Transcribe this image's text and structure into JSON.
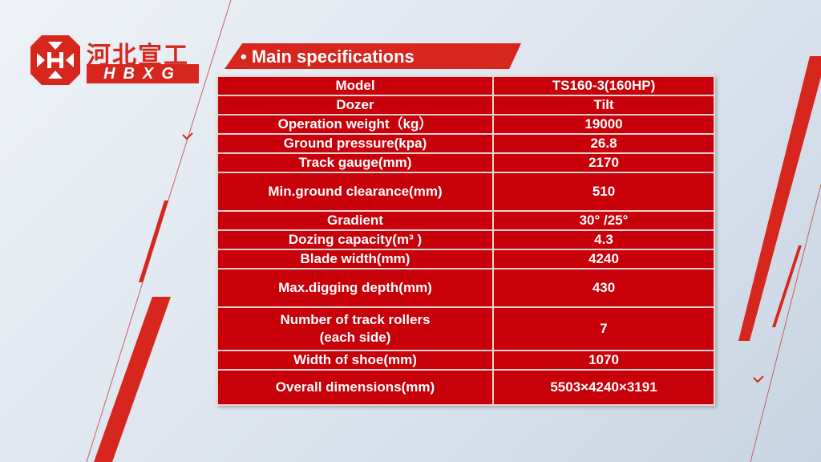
{
  "brand": {
    "cn_name": "河北宣工",
    "en_name": "HBXG",
    "colors": {
      "red": "#d7261e",
      "table_red": "#c8000a",
      "table_border": "#f1d3d3"
    }
  },
  "header": {
    "title": "• Main specifications"
  },
  "specs": {
    "rows": [
      {
        "label": "Model",
        "value": "TS160-3(160HP)"
      },
      {
        "label": "Dozer",
        "value": "Tilt"
      },
      {
        "label": "Operation weight（kg）",
        "value": "19000"
      },
      {
        "label": "Ground pressure(kpa)",
        "value": "26.8"
      },
      {
        "label": "Track gauge(mm)",
        "value": "2170"
      },
      {
        "label": "Min.ground clearance(mm)",
        "value": "510"
      },
      {
        "label": "Gradient",
        "value": "30° /25°"
      },
      {
        "label": "Dozing capacity(m³ )",
        "value": "4.3"
      },
      {
        "label": "Blade width(mm)",
        "value": "4240"
      },
      {
        "label": "Max.digging depth(mm)",
        "value": "430"
      },
      {
        "label_line1": "Number of track rollers",
        "label_line2": "(each side)",
        "value": "7"
      },
      {
        "label": "Width of shoe(mm)",
        "value": "1070"
      },
      {
        "label": "Overall dimensions(mm)",
        "value": "5503×4240×3191"
      }
    ]
  },
  "icons": [
    "logo-mark-icon",
    "chevron-down-icon"
  ]
}
